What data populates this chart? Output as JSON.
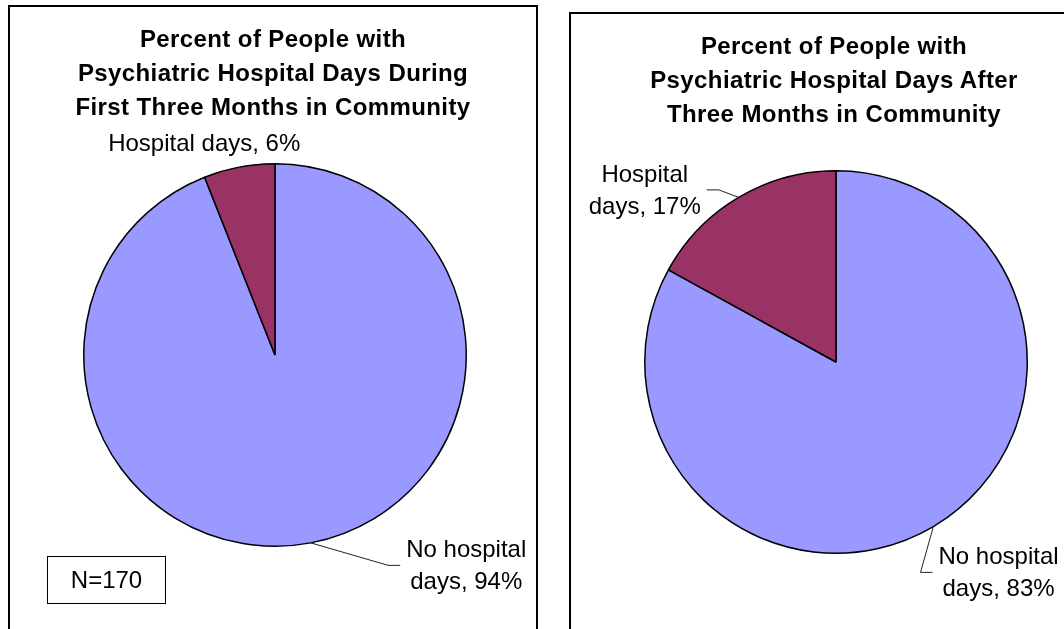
{
  "chart_data": [
    {
      "type": "pie",
      "title": "Percent of People with Psychiatric Hospital Days During First Three Months in Community",
      "categories": [
        "No hospital days",
        "Hospital days"
      ],
      "values": [
        94,
        6
      ],
      "colors": [
        "#9999ff",
        "#993366"
      ],
      "value_labels": [
        "94%",
        "6%"
      ],
      "annotations": [
        "N=170"
      ]
    },
    {
      "type": "pie",
      "title": "Percent of People with Psychiatric Hospital Days After Three Months in Community",
      "categories": [
        "No hospital days",
        "Hospital days"
      ],
      "values": [
        83,
        17
      ],
      "colors": [
        "#9999ff",
        "#993366"
      ],
      "value_labels": [
        "83%",
        "17%"
      ]
    }
  ]
}
